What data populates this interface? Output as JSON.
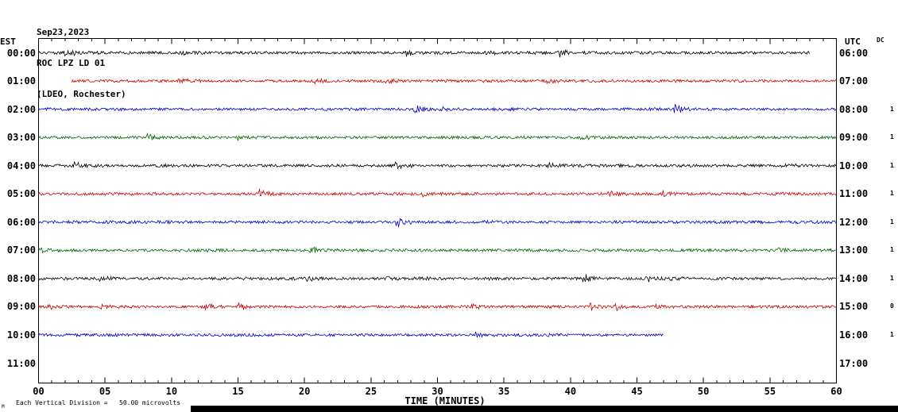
{
  "header": {
    "date": "Sep23,2023",
    "station": "ROC LPZ LD 01",
    "location": "(LDEO, Rochester)"
  },
  "axes": {
    "left_label": "EST",
    "right_label": "UTC",
    "dc_label": "DC",
    "x_axis_label": "TIME (MINUTES)",
    "x_ticks": [
      "00",
      "05",
      "10",
      "15",
      "20",
      "25",
      "30",
      "35",
      "40",
      "45",
      "50",
      "55",
      "60"
    ],
    "x_major_step_minutes": 5,
    "x_minor_step_minutes": 1
  },
  "footer": {
    "scale_note": "Each Vertical Division =   50.00 microvolts",
    "corner_mark": "M"
  },
  "chart_data": {
    "type": "line",
    "title": "ROC LPZ LD 01 helicorder (LDEO, Rochester) Sep23,2023",
    "xlabel": "TIME (MINUTES)",
    "x_range_minutes": [
      0,
      60
    ],
    "vertical_division_microvolts": 50.0,
    "trace_style": "seismic-noise",
    "rows": [
      {
        "est": "00:00",
        "utc": "06:00",
        "color": "#000000",
        "start_min": 0,
        "end_min": 58,
        "flag": ""
      },
      {
        "est": "01:00",
        "utc": "07:00",
        "color": "#cc0000",
        "start_min": 2.5,
        "end_min": 60,
        "flag": ""
      },
      {
        "est": "02:00",
        "utc": "08:00",
        "color": "#0000cc",
        "start_min": 0,
        "end_min": 60,
        "flag": "1"
      },
      {
        "est": "03:00",
        "utc": "09:00",
        "color": "#006600",
        "start_min": 0,
        "end_min": 60,
        "flag": "1"
      },
      {
        "est": "04:00",
        "utc": "10:00",
        "color": "#000000",
        "start_min": 0,
        "end_min": 60,
        "flag": "1"
      },
      {
        "est": "05:00",
        "utc": "11:00",
        "color": "#cc0000",
        "start_min": 0,
        "end_min": 60,
        "flag": "1"
      },
      {
        "est": "06:00",
        "utc": "12:00",
        "color": "#0000cc",
        "start_min": 0,
        "end_min": 60,
        "flag": "1"
      },
      {
        "est": "07:00",
        "utc": "13:00",
        "color": "#006600",
        "start_min": 0,
        "end_min": 60,
        "flag": "1"
      },
      {
        "est": "08:00",
        "utc": "14:00",
        "color": "#000000",
        "start_min": 0,
        "end_min": 60,
        "flag": "1"
      },
      {
        "est": "09:00",
        "utc": "15:00",
        "color": "#cc0000",
        "start_min": 0,
        "end_min": 60,
        "flag": "0"
      },
      {
        "est": "10:00",
        "utc": "16:00",
        "color": "#0000cc",
        "start_min": 0,
        "end_min": 47,
        "flag": "1"
      },
      {
        "est": "11:00",
        "utc": "17:00",
        "color": null,
        "start_min": null,
        "end_min": null,
        "flag": ""
      }
    ]
  }
}
